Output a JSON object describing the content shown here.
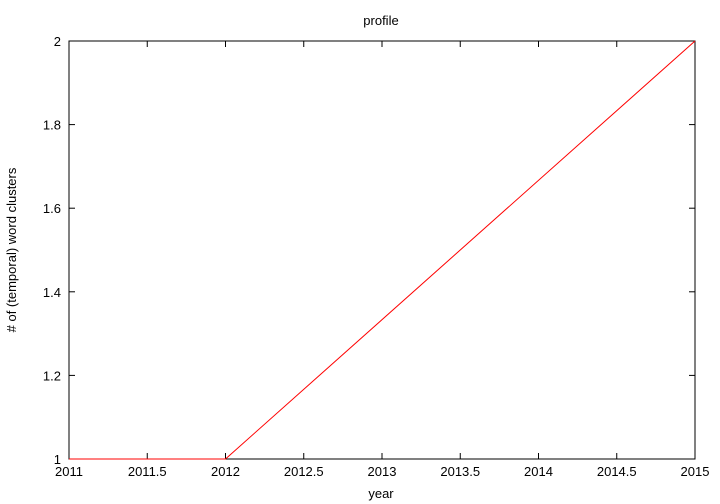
{
  "chart_data": {
    "type": "line",
    "title": "profile",
    "xlabel": "year",
    "ylabel": "# of (temporal) word clusters",
    "xlim": [
      2011,
      2015
    ],
    "ylim": [
      1,
      2
    ],
    "xticks": [
      2011,
      2011.5,
      2012,
      2012.5,
      2013,
      2013.5,
      2014,
      2014.5,
      2015
    ],
    "xtick_labels": [
      "2011",
      "2011.5",
      "2012",
      "2012.5",
      "2013",
      "2013.5",
      "2014",
      "2014.5",
      "2015"
    ],
    "yticks": [
      1,
      1.2,
      1.4,
      1.6,
      1.8,
      2
    ],
    "ytick_labels": [
      "1",
      "1.2",
      "1.4",
      "1.6",
      "1.8",
      "2"
    ],
    "grid": false,
    "series": [
      {
        "color": "#ff0000",
        "x": [
          2011,
          2012,
          2015
        ],
        "y": [
          1,
          1,
          2
        ]
      }
    ]
  }
}
